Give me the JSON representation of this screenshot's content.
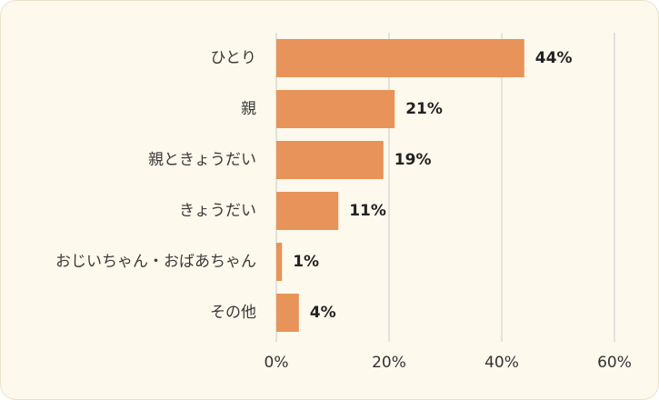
{
  "chart_data": {
    "type": "bar",
    "orientation": "horizontal",
    "categories": [
      "ひとり",
      "親",
      "親ときょうだい",
      "きょうだい",
      "おじいちゃん・おばあちゃん",
      "その他"
    ],
    "values": [
      44,
      21,
      19,
      11,
      1,
      4
    ],
    "value_labels": [
      "44%",
      "21%",
      "19%",
      "11%",
      "1%",
      "4%"
    ],
    "xlim": [
      0,
      60
    ],
    "x_ticks": [
      0,
      20,
      40,
      60
    ],
    "x_tick_labels": [
      "0%",
      "20%",
      "40%",
      "60%"
    ],
    "grid": true,
    "bar_color": "#e8935a",
    "background_color": "#fdf9ec",
    "gridline_color": "#d9d9d9"
  }
}
